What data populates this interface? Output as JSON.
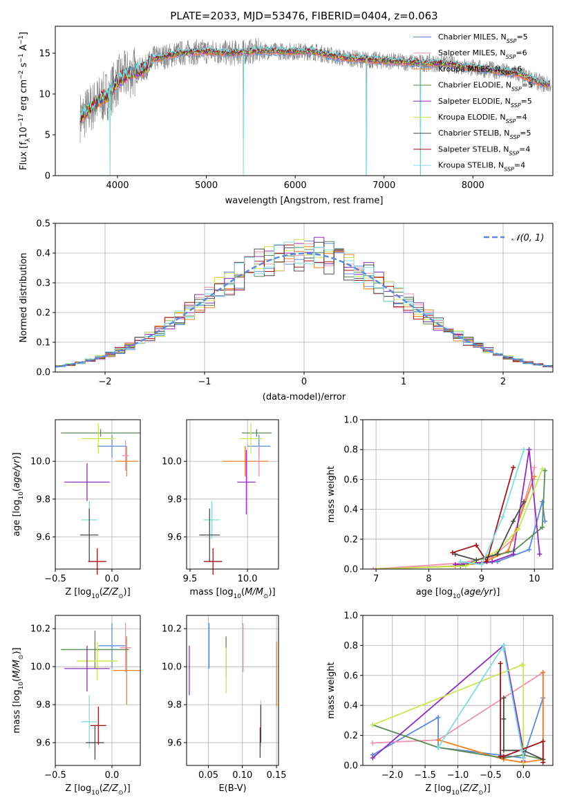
{
  "figure": {
    "title": "PLATE=2033, MJD=53476, FIBERID=0404, z=0.063"
  },
  "colors": {
    "blue": "#5b8bd8",
    "pink": "#f08fb0",
    "orange": "#f07f1e",
    "green": "#5a8a55",
    "purple": "#8e2cb8",
    "yellowgreen": "#c8e650",
    "darkgray": "#4a4a4a",
    "red": "#a01515",
    "cyan": "#7fdde0",
    "gray": "#888888"
  },
  "chart_data": [
    {
      "id": "spectrum",
      "type": "line",
      "xlabel": "wavelength [Angstrom, rest frame]",
      "ylabel": "Flux [f_λ10^-17 erg cm^-2 s^-1 A^-1]",
      "xlim": [
        3300,
        8900
      ],
      "ylim": [
        0,
        18.3
      ],
      "xticks": [
        4000,
        5000,
        6000,
        7000,
        8000
      ],
      "yticks": [
        0,
        5,
        10,
        15
      ],
      "grid": false,
      "legend_position": "right",
      "continuum": {
        "x": [
          3600,
          3700,
          3800,
          3900,
          4000,
          4100,
          4200,
          4300,
          4400,
          4500,
          4700,
          5000,
          5300,
          5600,
          5900,
          6200,
          6500,
          6800,
          7100,
          7400,
          7700,
          8000,
          8300,
          8500,
          8800
        ],
        "y": [
          7.2,
          8.3,
          9.3,
          10.0,
          11.6,
          12.3,
          12.8,
          13.0,
          14.3,
          14.5,
          15.0,
          15.2,
          15.0,
          15.3,
          15.2,
          15.2,
          14.5,
          14.2,
          14.0,
          13.8,
          13.7,
          13.2,
          12.8,
          12.5,
          11.2
        ]
      },
      "spikes": [
        {
          "x": 3915,
          "y": 0
        },
        {
          "x": 5415,
          "y": 0
        },
        {
          "x": 6800,
          "y": 0
        },
        {
          "x": 7410,
          "y": 0
        }
      ],
      "series": [
        {
          "name": "Chabrier MILES, N_SSP=5",
          "color": "#5b8bd8"
        },
        {
          "name": "Salpeter MILES, N_SSP=6",
          "color": "#f08fb0"
        },
        {
          "name": "Kroupa MILES, N_SSP=6",
          "color": "#f07f1e"
        },
        {
          "name": "Chabrier ELODIE, N_SSP=5",
          "color": "#5a8a55"
        },
        {
          "name": "Salpeter ELODIE, N_SSP=5",
          "color": "#8e2cb8"
        },
        {
          "name": "Kroupa ELODIE, N_SSP=4",
          "color": "#c8e650"
        },
        {
          "name": "Chabrier STELIB, N_SSP=5",
          "color": "#4a4a4a"
        },
        {
          "name": "Salpeter STELIB, N_SSP=4",
          "color": "#a01515"
        },
        {
          "name": "Kroupa STELIB, N_SSP=4",
          "color": "#7fdde0"
        }
      ]
    },
    {
      "id": "residuals",
      "type": "line",
      "xlabel": "(data-model)/error",
      "ylabel": "Normed distribution",
      "xlim": [
        -2.5,
        2.5
      ],
      "ylim": [
        0,
        0.5
      ],
      "xticks": [
        -2,
        -1,
        0,
        1,
        2
      ],
      "yticks": [
        0.0,
        0.1,
        0.2,
        0.3,
        0.4,
        0.5
      ],
      "grid": true,
      "legend_position": "top-right",
      "gaussian_label": "N(0,1)",
      "bin_width": 0.1
    },
    {
      "id": "z-age",
      "type": "scatter",
      "xlabel": "Z [log10(Z/Z⊙)]",
      "ylabel": "age [log10(age/yr)]",
      "xlim": [
        -0.5,
        0.25
      ],
      "ylim": [
        9.43,
        10.22
      ],
      "xticks": [
        -0.5,
        0.0
      ],
      "yticks": [
        9.6,
        9.8,
        10.0
      ],
      "grid": true,
      "points": [
        {
          "x": 0.0,
          "y": 10.08,
          "xe": 0.13,
          "ye": 0.06,
          "color": "#5b8bd8"
        },
        {
          "x": 0.13,
          "y": 10.0,
          "xe": 0.1,
          "ye": 0.08,
          "color": "#f07f1e"
        },
        {
          "x": 0.12,
          "y": 10.03,
          "xe": 0.03,
          "ye": 0.08,
          "color": "#f08fb0"
        },
        {
          "x": -0.1,
          "y": 10.15,
          "xe": 0.35,
          "ye": 0.02,
          "color": "#5a8a55"
        },
        {
          "x": -0.12,
          "y": 10.12,
          "xe": 0.15,
          "ye": 0.08,
          "color": "#c8e650"
        },
        {
          "x": -0.22,
          "y": 9.89,
          "xe": 0.2,
          "ye": 0.1,
          "color": "#8e2cb8"
        },
        {
          "x": -0.2,
          "y": 9.69,
          "xe": 0.07,
          "ye": 0.1,
          "color": "#7fdde0"
        },
        {
          "x": -0.2,
          "y": 9.61,
          "xe": 0.08,
          "ye": 0.14,
          "color": "#4a4a4a"
        },
        {
          "x": -0.13,
          "y": 9.47,
          "xe": 0.08,
          "ye": 0.07,
          "color": "#a01515"
        }
      ]
    },
    {
      "id": "mass-age",
      "type": "scatter",
      "xlabel": "mass [log10(M/M⊙)]",
      "ylabel": "",
      "xlim": [
        9.47,
        10.27
      ],
      "ylim": [
        9.43,
        10.22
      ],
      "xticks": [
        9.5,
        10.0
      ],
      "yticks": [
        9.6,
        9.8,
        10.0
      ],
      "grid": true,
      "points": [
        {
          "x": 10.1,
          "y": 10.08,
          "xe": 0.1,
          "ye": 0.06,
          "color": "#5b8bd8"
        },
        {
          "x": 9.98,
          "y": 10.0,
          "xe": 0.2,
          "ye": 0.08,
          "color": "#f07f1e"
        },
        {
          "x": 10.1,
          "y": 10.0,
          "xe": 0.02,
          "ye": 0.08,
          "color": "#f08fb0"
        },
        {
          "x": 10.08,
          "y": 10.15,
          "xe": 0.13,
          "ye": 0.02,
          "color": "#5a8a55"
        },
        {
          "x": 10.03,
          "y": 10.12,
          "xe": 0.1,
          "ye": 0.08,
          "color": "#c8e650"
        },
        {
          "x": 9.99,
          "y": 9.89,
          "xe": 0.08,
          "ye": 0.17,
          "color": "#8e2cb8"
        },
        {
          "x": 9.69,
          "y": 9.69,
          "xe": 0.07,
          "ye": 0.1,
          "color": "#7fdde0"
        },
        {
          "x": 9.67,
          "y": 9.61,
          "xe": 0.09,
          "ye": 0.14,
          "color": "#4a4a4a"
        },
        {
          "x": 9.7,
          "y": 9.47,
          "xe": 0.08,
          "ye": 0.07,
          "color": "#a01515"
        }
      ]
    },
    {
      "id": "weight-age",
      "type": "line",
      "xlabel": "age [log10(age/yr)]",
      "ylabel": "mass weight",
      "xlim": [
        6.75,
        10.35
      ],
      "ylim": [
        0,
        1.0
      ],
      "xticks": [
        7,
        8,
        9,
        10
      ],
      "yticks": [
        0.0,
        0.2,
        0.4,
        0.6,
        0.8,
        1.0
      ],
      "grid": true,
      "series": [
        {
          "color": "#5b8bd8",
          "x": [
            8.7,
            9.3,
            9.9,
            10.15,
            10.2
          ],
          "y": [
            0.03,
            0.05,
            0.13,
            0.45,
            0.32
          ]
        },
        {
          "color": "#f08fb0",
          "x": [
            6.95,
            8.6,
            9.2,
            9.6,
            10.0
          ],
          "y": [
            0.0,
            0.04,
            0.08,
            0.2,
            0.68
          ]
        },
        {
          "color": "#f07f1e",
          "x": [
            7.0,
            8.5,
            9.0,
            9.5,
            10.0
          ],
          "y": [
            0.0,
            0.02,
            0.04,
            0.12,
            0.62
          ]
        },
        {
          "color": "#5a8a55",
          "x": [
            8.6,
            9.1,
            9.6,
            10.15,
            10.2
          ],
          "y": [
            0.02,
            0.08,
            0.12,
            0.28,
            0.66
          ]
        },
        {
          "color": "#8e2cb8",
          "x": [
            8.5,
            9.2,
            9.6,
            9.9,
            10.1
          ],
          "y": [
            0.03,
            0.05,
            0.1,
            0.8,
            0.1
          ]
        },
        {
          "color": "#c8e650",
          "x": [
            7.0,
            8.7,
            9.3,
            9.7,
            10.15
          ],
          "y": [
            0.0,
            0.02,
            0.12,
            0.27,
            0.67
          ]
        },
        {
          "color": "#4a4a4a",
          "x": [
            8.5,
            8.9,
            9.3,
            9.6,
            9.8
          ],
          "y": [
            0.1,
            0.06,
            0.1,
            0.32,
            0.45
          ]
        },
        {
          "color": "#a01515",
          "x": [
            8.45,
            8.9,
            9.1,
            9.6
          ],
          "y": [
            0.11,
            0.16,
            0.05,
            0.68
          ]
        },
        {
          "color": "#7fdde0",
          "x": [
            8.6,
            9.0,
            9.4,
            9.8
          ],
          "y": [
            0.05,
            0.03,
            0.35,
            0.8
          ]
        }
      ]
    },
    {
      "id": "z-mass",
      "type": "scatter",
      "xlabel": "Z [log10(Z/Z⊙)]",
      "ylabel": "mass [log10(M/M⊙)]",
      "xlim": [
        -0.5,
        0.25
      ],
      "ylim": [
        9.48,
        10.27
      ],
      "xticks": [
        -0.5,
        0.0
      ],
      "yticks": [
        9.6,
        9.8,
        10.0,
        10.2
      ],
      "grid": true,
      "points": [
        {
          "x": 0.0,
          "y": 10.11,
          "xe": 0.12,
          "ye": 0.12,
          "color": "#5b8bd8"
        },
        {
          "x": 0.12,
          "y": 10.1,
          "xe": 0.05,
          "ye": 0.13,
          "color": "#f08fb0"
        },
        {
          "x": 0.13,
          "y": 9.98,
          "xe": 0.12,
          "ye": 0.18,
          "color": "#f07f1e"
        },
        {
          "x": -0.15,
          "y": 10.09,
          "xe": 0.3,
          "ye": 0.1,
          "color": "#5a8a55"
        },
        {
          "x": -0.13,
          "y": 10.03,
          "xe": 0.18,
          "ye": 0.1,
          "color": "#c8e650"
        },
        {
          "x": -0.22,
          "y": 9.99,
          "xe": 0.2,
          "ye": 0.12,
          "color": "#8e2cb8"
        },
        {
          "x": -0.2,
          "y": 9.71,
          "xe": 0.07,
          "ye": 0.14,
          "color": "#7fdde0"
        },
        {
          "x": -0.15,
          "y": 9.6,
          "xe": 0.08,
          "ye": 0.09,
          "color": "#4a4a4a"
        },
        {
          "x": -0.12,
          "y": 9.69,
          "xe": 0.07,
          "ye": 0.1,
          "color": "#a01515"
        }
      ]
    },
    {
      "id": "ebv-mass",
      "type": "scatter",
      "xlabel": "E(B-V)",
      "ylabel": "",
      "xlim": [
        0.018,
        0.153
      ],
      "ylim": [
        9.48,
        10.27
      ],
      "xticks": [
        0.05,
        0.1,
        0.15
      ],
      "ytick_labels": [
        "9.6",
        "9.8",
        "10.0",
        "10.2"
      ],
      "xtick_labels": [
        "0.05",
        "0.10",
        "0.15"
      ],
      "yticks": [
        9.6,
        9.8,
        10.0,
        10.2
      ],
      "grid": true,
      "points": [
        {
          "x": 0.051,
          "y": 10.11,
          "xe": 0,
          "ye": 0.12,
          "color": "#5b8bd8"
        },
        {
          "x": 0.101,
          "y": 10.1,
          "xe": 0,
          "ye": 0.13,
          "color": "#f08fb0"
        },
        {
          "x": 0.15,
          "y": 9.96,
          "xe": 0,
          "ye": 0.17,
          "color": "#f07f1e"
        },
        {
          "x": 0.076,
          "y": 10.05,
          "xe": 0,
          "ye": 0.11,
          "color": "#5a8a55"
        },
        {
          "x": 0.076,
          "y": 9.98,
          "xe": 0,
          "ye": 0.12,
          "color": "#c8e650"
        },
        {
          "x": 0.022,
          "y": 9.98,
          "xe": 0,
          "ye": 0.13,
          "color": "#8e2cb8"
        },
        {
          "x": 0.127,
          "y": 9.7,
          "xe": 0,
          "ye": 0.12,
          "color": "#7fdde0"
        },
        {
          "x": 0.126,
          "y": 9.6,
          "xe": 0,
          "ye": 0.08,
          "color": "#4a4a4a"
        },
        {
          "x": 0.127,
          "y": 9.7,
          "xe": 0,
          "ye": 0.1,
          "color": "#a01515"
        }
      ]
    },
    {
      "id": "weight-z",
      "type": "line",
      "xlabel": "Z [log10(Z/Z⊙)]",
      "ylabel": "mass weight",
      "xlim": [
        -2.45,
        0.45
      ],
      "ylim": [
        0,
        1.0
      ],
      "xticks": [
        -2.0,
        -1.5,
        -1.0,
        -0.5,
        0.0
      ],
      "yticks": [
        0.0,
        0.2,
        0.4,
        0.6,
        0.8,
        1.0
      ],
      "grid": true,
      "series": [
        {
          "color": "#5b8bd8",
          "x": [
            -2.3,
            -1.3,
            -1.3,
            0.0,
            0.3
          ],
          "y": [
            0.07,
            0.32,
            0.12,
            0.05,
            0.45
          ]
        },
        {
          "color": "#f08fb0",
          "x": [
            -2.3,
            -1.3,
            0.3,
            0.3
          ],
          "y": [
            0.15,
            0.17,
            0.62,
            0.02
          ]
        },
        {
          "color": "#f07f1e",
          "x": [
            -1.3,
            -0.3,
            0.0,
            0.3,
            0.3
          ],
          "y": [
            0.17,
            0.04,
            0.02,
            0.04,
            0.62
          ]
        },
        {
          "color": "#5a8a55",
          "x": [
            -2.3,
            -1.3,
            -0.3,
            0.0,
            0.3
          ],
          "y": [
            0.27,
            0.12,
            0.05,
            0.07,
            0.04
          ]
        },
        {
          "color": "#8e2cb8",
          "x": [
            -2.3,
            -0.3,
            0.0,
            0.0
          ],
          "y": [
            0.05,
            0.8,
            0.1,
            0.03
          ]
        },
        {
          "color": "#c8e650",
          "x": [
            -2.3,
            -0.02,
            0.0,
            0.0
          ],
          "y": [
            0.27,
            0.67,
            0.67,
            0.0
          ]
        },
        {
          "color": "#4a4a4a",
          "x": [
            -0.3,
            -0.3,
            -0.3,
            0.0,
            0.3
          ],
          "y": [
            0.45,
            0.31,
            0.1,
            0.1,
            0.04
          ]
        },
        {
          "color": "#a01515",
          "x": [
            -0.35,
            -0.35,
            -0.3,
            0.3,
            0.3
          ],
          "y": [
            0.68,
            0.06,
            0.06,
            0.16,
            0.02
          ]
        },
        {
          "color": "#7fdde0",
          "x": [
            -1.3,
            -0.3,
            -0.3,
            -0.02,
            0.0
          ],
          "y": [
            0.12,
            0.8,
            0.77,
            0.1,
            0.05
          ]
        }
      ]
    }
  ]
}
